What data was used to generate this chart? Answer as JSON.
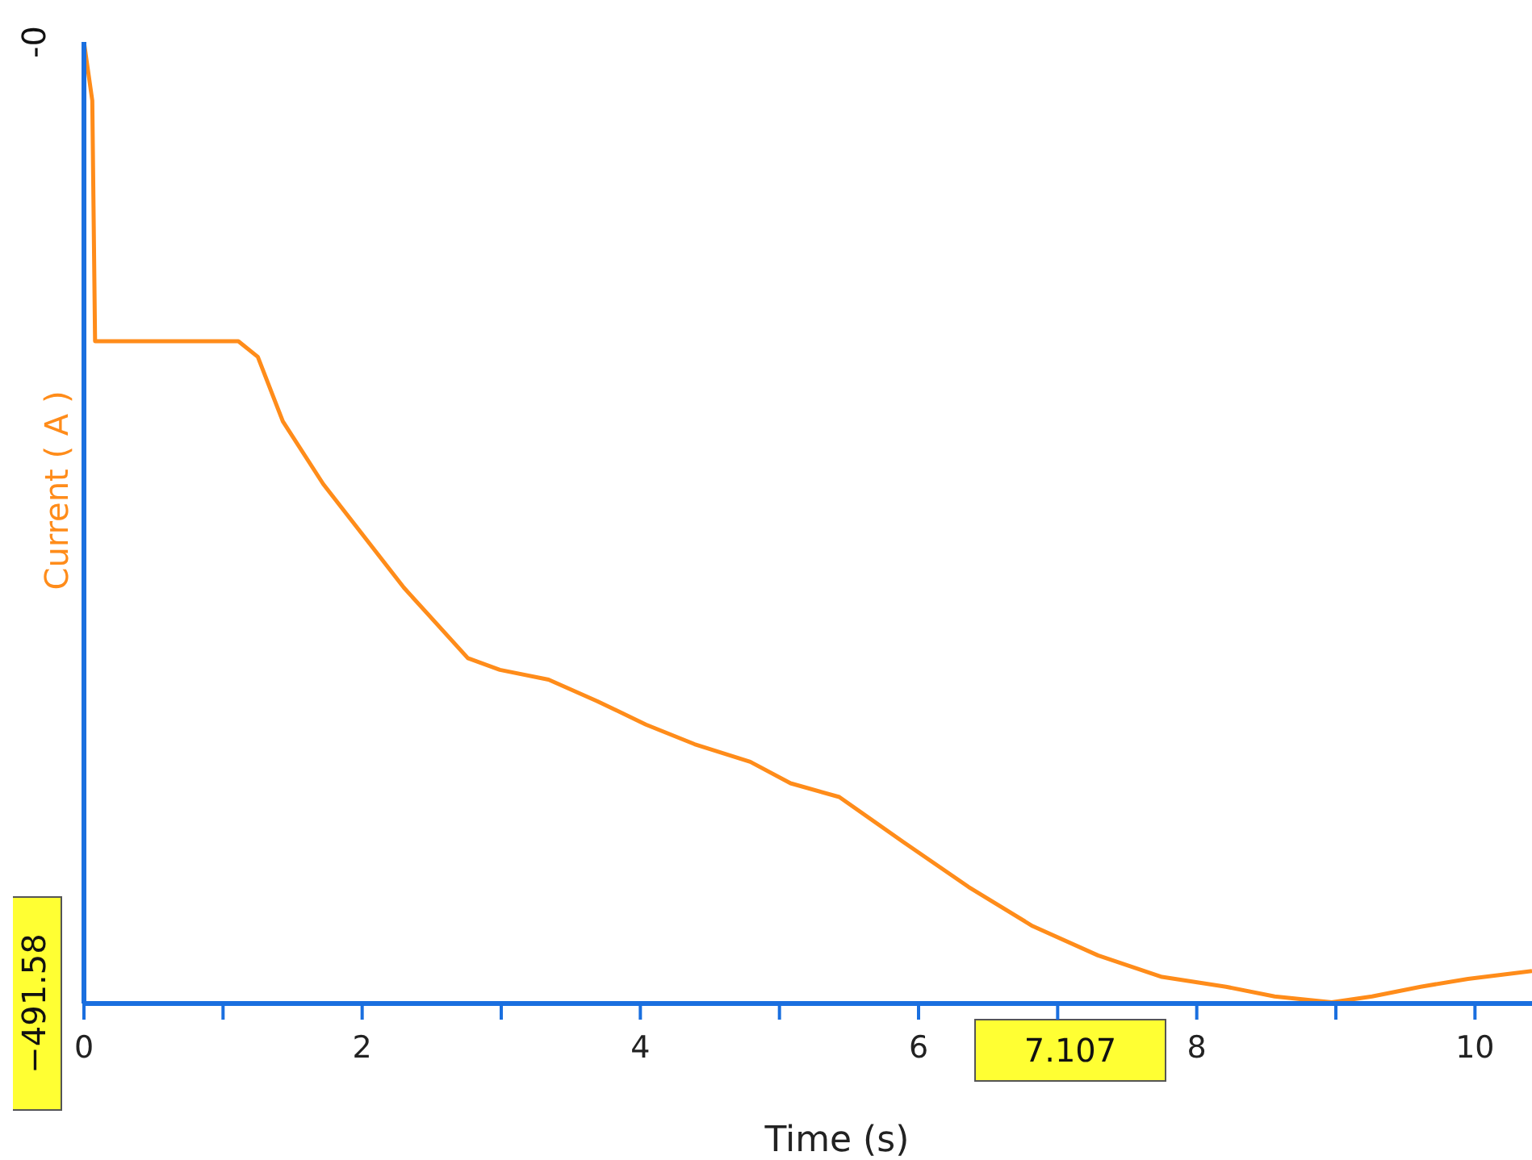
{
  "chart_data": {
    "type": "line",
    "xlabel": "Time (s)",
    "ylabel": "Current ( A )",
    "x": [
      0,
      0.06,
      0.08,
      0.1,
      1.11,
      1.25,
      1.43,
      1.72,
      2.3,
      2.76,
      2.99,
      3.34,
      3.69,
      4.04,
      4.39,
      4.79,
      5.08,
      5.43,
      5.89,
      6.36,
      6.82,
      7.29,
      7.75,
      8.21,
      8.56,
      8.97,
      9.26,
      9.61,
      9.95,
      10.41
    ],
    "series": [
      {
        "color": "#ff8c1a",
        "values": [
          0,
          -30,
          -153,
          -153,
          -153,
          -161,
          -194,
          -226,
          -279,
          -315,
          -321,
          -326,
          -337,
          -349,
          -359,
          -368,
          -379,
          -386,
          -409,
          -432,
          -452,
          -467,
          -478,
          -483,
          -488,
          -491,
          -488,
          -483,
          -479,
          -475
        ]
      }
    ],
    "xlim": [
      0,
      10.41
    ],
    "xticks": [
      0,
      {
        "value": 1,
        "label": null
      },
      2,
      {
        "value": 3,
        "label": null
      },
      4,
      {
        "value": 5,
        "label": null
      },
      6,
      {
        "value": 7,
        "label": null
      },
      8,
      {
        "value": 9,
        "label": null
      },
      10
    ],
    "ylim": [
      -491.58,
      0
    ],
    "yticks": [
      {
        "value": 0,
        "label": "-0"
      },
      {
        "value": -491.58,
        "label": "−491.58"
      }
    ],
    "annotations": [
      "7.107"
    ],
    "grid": false,
    "legend": false,
    "marker": "none",
    "line_style": "solid"
  }
}
